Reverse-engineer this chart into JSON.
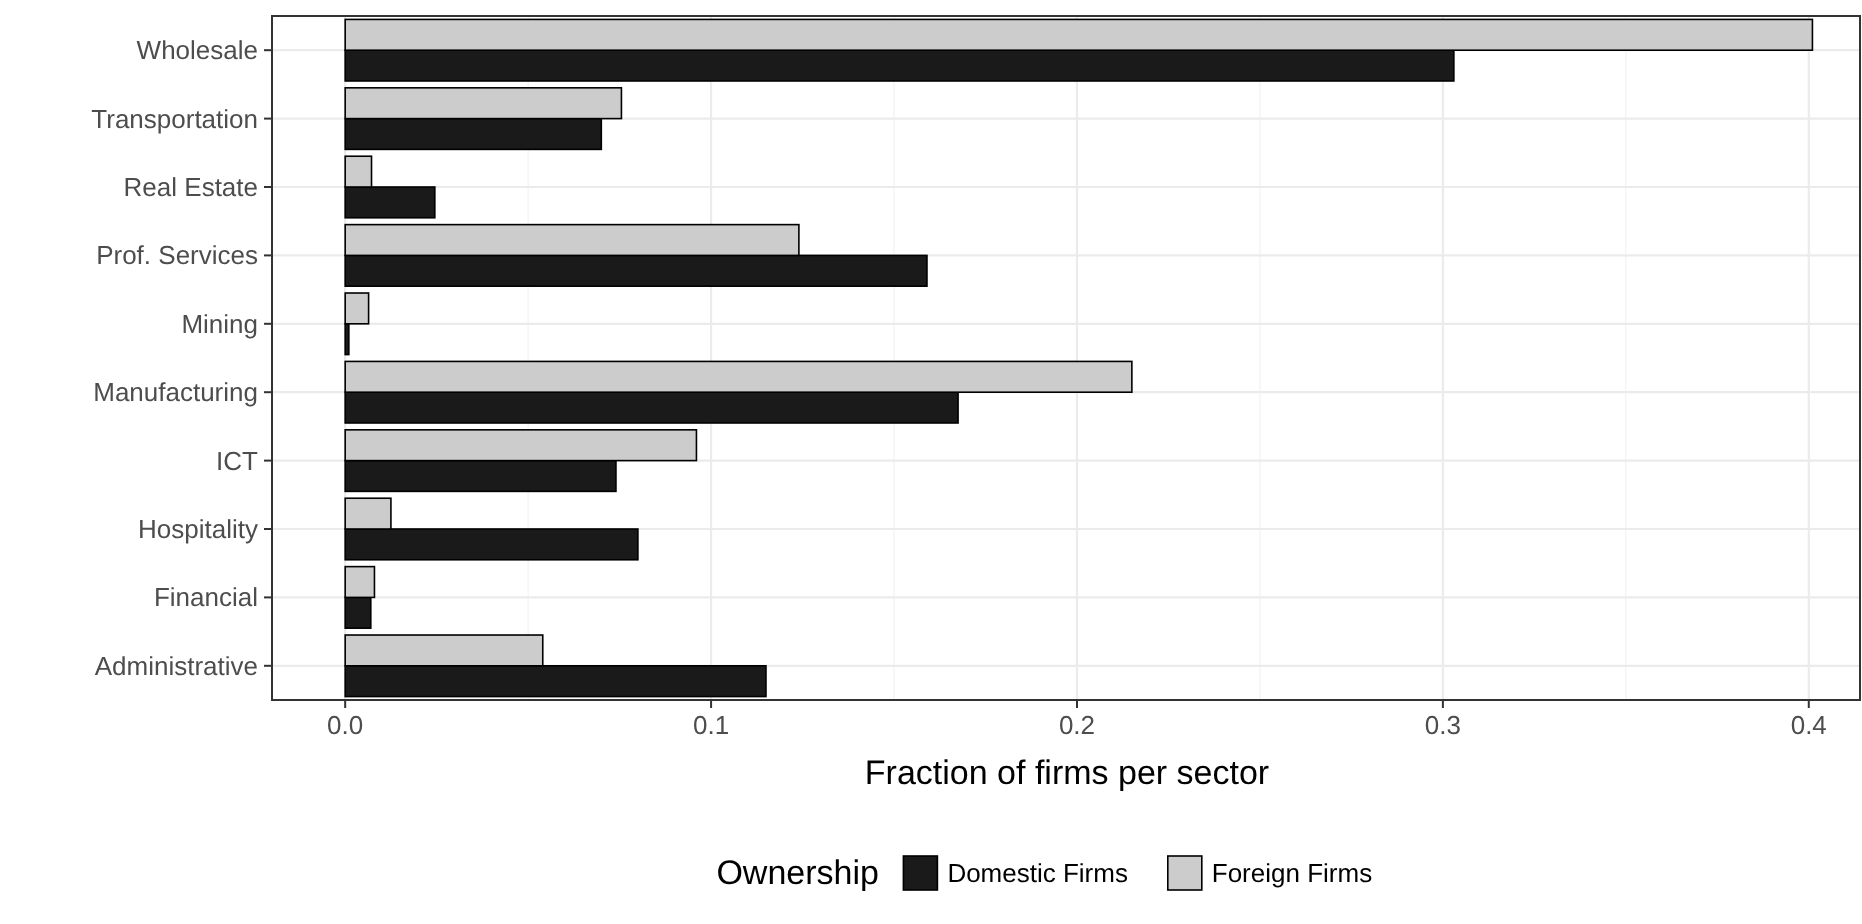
{
  "chart_data": {
    "type": "bar",
    "orientation": "horizontal",
    "xlabel": "Fraction of firms per sector",
    "legend_title": "Ownership",
    "legend": "bottom",
    "grid": true,
    "categories": [
      "Wholesale",
      "Transportation",
      "Real Estate",
      "Prof. Services",
      "Mining",
      "Manufacturing",
      "ICT",
      "Hospitality",
      "Financial",
      "Administrative"
    ],
    "xlim": [
      -0.02,
      0.414
    ],
    "xticks": [
      {
        "value": 0,
        "label": "0.0"
      },
      0.1,
      0.2,
      0.3,
      0.4
    ],
    "series": [
      {
        "name": "Domestic Firms",
        "color": "#1a1a1a",
        "values": [
          0.303,
          0.07,
          0.0245,
          0.159,
          0.001,
          0.1675,
          0.074,
          0.08,
          0.007,
          0.115
        ]
      },
      {
        "name": "Foreign Firms",
        "color": "#cccccc",
        "values": [
          0.401,
          0.0755,
          0.0072,
          0.124,
          0.0064,
          0.215,
          0.096,
          0.0125,
          0.008,
          0.054
        ]
      }
    ]
  }
}
